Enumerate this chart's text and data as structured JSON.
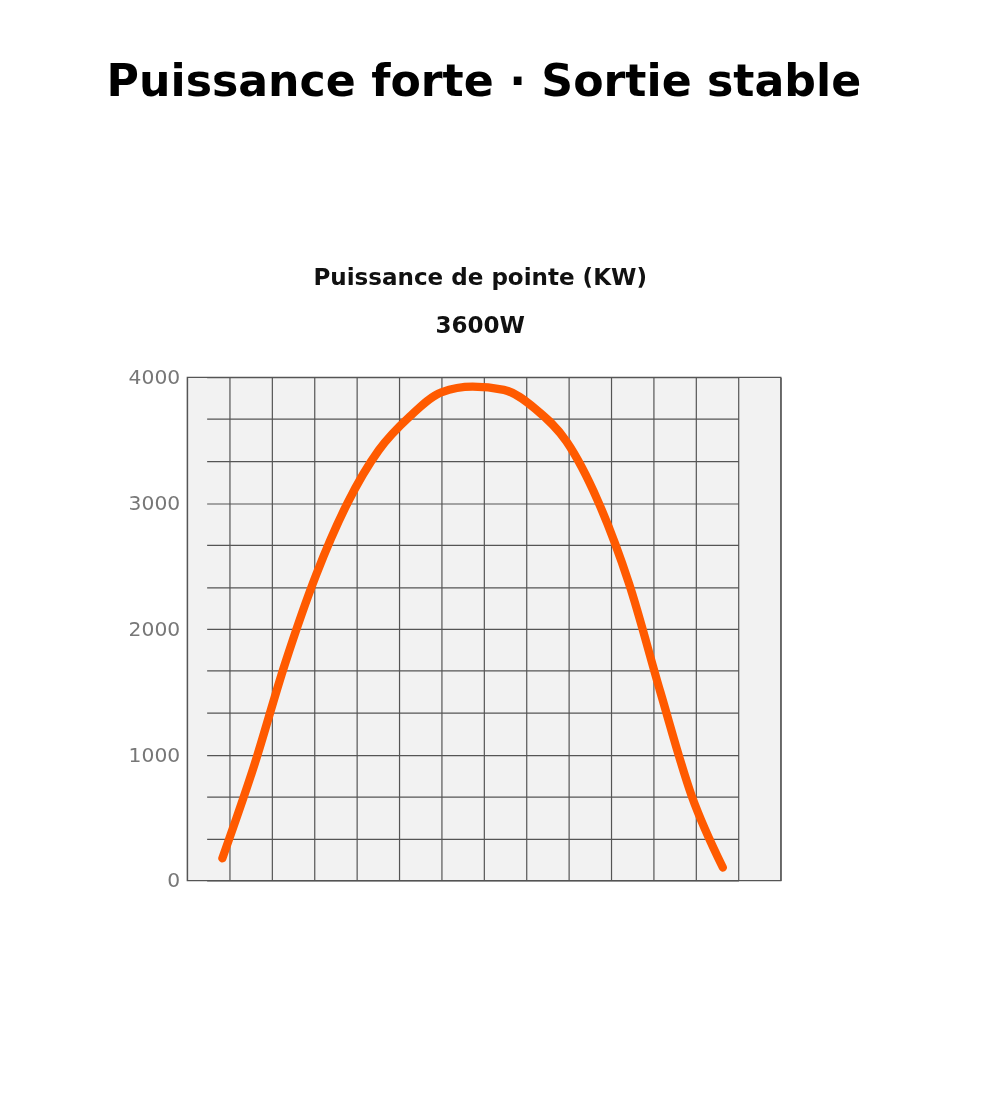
{
  "chart_data": {
    "type": "line",
    "title": "Puissance forte · Sortie stable",
    "subtitle": "Puissance de pointe (KW)",
    "annotations": [
      "3600W"
    ],
    "categories": [
      null,
      null,
      null,
      null,
      null,
      null,
      null,
      null,
      null,
      null,
      null,
      null,
      null,
      null,
      null,
      null,
      null
    ],
    "series": [
      {
        "color": "#ff5a00",
        "values": [
          176,
          900,
          1720,
          2430,
          3000,
          3420,
          3690,
          3880,
          3925,
          3900,
          3750,
          3490,
          3020,
          2360,
          1500,
          675,
          103
        ]
      }
    ],
    "ylim": [
      0,
      4000
    ],
    "yticks": [
      0,
      {
        "value": 333.3,
        "label": null
      },
      {
        "value": 666.7,
        "label": null
      },
      1000,
      {
        "value": 1333.3,
        "label": null
      },
      {
        "value": 1666.7,
        "label": null
      },
      2000,
      {
        "value": 2333.3,
        "label": null
      },
      {
        "value": 2666.7,
        "label": null
      },
      3000,
      {
        "value": 3333.3,
        "label": null
      },
      {
        "value": 3666.7,
        "label": null
      },
      4000
    ],
    "tick_labels": "y",
    "grid": true,
    "legend": false,
    "marker": "none",
    "line_style": "solid"
  }
}
